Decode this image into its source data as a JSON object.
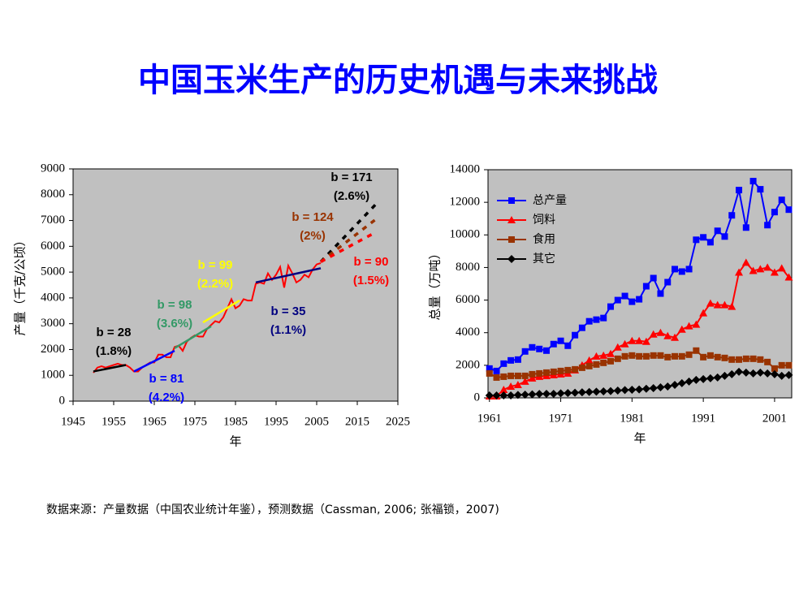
{
  "title": "中国玉米生产的历史机遇与未来挑战",
  "source": "数据来源：产量数据（中国农业统计年鉴），预测数据（Cassman, 2006; 张福锁，2007)",
  "chart_data": [
    {
      "type": "line",
      "x_label": "年",
      "y_label": "产量（千克/公顷）",
      "xlim": [
        1945,
        2025
      ],
      "xticks": [
        1945,
        1955,
        1965,
        1975,
        1985,
        1995,
        2005,
        2015,
        2025
      ],
      "ylim": [
        0,
        9000
      ],
      "yticks": [
        0,
        1000,
        2000,
        3000,
        4000,
        5000,
        6000,
        7000,
        8000,
        9000
      ],
      "series": [
        {
          "color": "#ff0000",
          "x": [
            1950,
            1951,
            1952,
            1953,
            1954,
            1955,
            1956,
            1957,
            1958,
            1959,
            1960,
            1961,
            1962,
            1963,
            1964,
            1965,
            1966,
            1967,
            1968,
            1969,
            1970,
            1971,
            1972,
            1973,
            1974,
            1975,
            1976,
            1977,
            1978,
            1979,
            1980,
            1981,
            1982,
            1983,
            1984,
            1985,
            1986,
            1987,
            1988,
            1989,
            1990,
            1991,
            1992,
            1993,
            1994,
            1995,
            1996,
            1997,
            1998,
            1999,
            2000,
            2001,
            2002,
            2003,
            2004,
            2005,
            2006
          ],
          "values": [
            1100,
            1300,
            1350,
            1300,
            1350,
            1400,
            1450,
            1400,
            1400,
            1300,
            1150,
            1150,
            1300,
            1400,
            1500,
            1500,
            1800,
            1800,
            1700,
            1700,
            2100,
            2150,
            1950,
            2300,
            2450,
            2550,
            2500,
            2500,
            2800,
            2950,
            3100,
            3050,
            3250,
            3600,
            3950,
            3600,
            3700,
            3950,
            3900,
            3900,
            4550,
            4600,
            4550,
            4950,
            4700,
            4900,
            5200,
            4400,
            5250,
            4950,
            4600,
            4700,
            4900,
            4800,
            5100,
            5300,
            5350
          ]
        }
      ],
      "trends": [
        {
          "label": "b = 28",
          "rate": "(1.8%)",
          "color": "#000000",
          "x": [
            1950,
            1958
          ],
          "values": [
            1150,
            1400
          ]
        },
        {
          "label": "b = 81",
          "rate": "(4.2%)",
          "color": "#0000ff",
          "x": [
            1960,
            1970
          ],
          "values": [
            1150,
            1950
          ]
        },
        {
          "label": "b = 98",
          "rate": "(3.6%)",
          "color": "#339966",
          "x": [
            1970,
            1979
          ],
          "values": [
            2050,
            2900
          ]
        },
        {
          "label": "b = 99",
          "rate": "(2.2%)",
          "color": "#ffff00",
          "x": [
            1977,
            1986
          ],
          "values": [
            3050,
            3900
          ]
        },
        {
          "label": "b = 35",
          "rate": "(1.1%)",
          "color": "#000080",
          "x": [
            1990,
            2006
          ],
          "values": [
            4600,
            5150
          ]
        },
        {
          "label": "b = 171",
          "rate": "(2.6%)",
          "color": "#000000",
          "x": [
            2006,
            2020
          ],
          "values": [
            5400,
            7700
          ],
          "dashed": true
        },
        {
          "label": "b = 124",
          "rate": "(2%)",
          "color": "#993300",
          "x": [
            2006,
            2020
          ],
          "values": [
            5400,
            7100
          ],
          "dashed": true
        },
        {
          "label": "b = 90",
          "rate": "(1.5%)",
          "color": "#ff0000",
          "x": [
            2006,
            2019
          ],
          "values": [
            5400,
            6500
          ],
          "dashed": true
        }
      ]
    },
    {
      "type": "line",
      "x_label": "年",
      "y_label": "总量（万吨）",
      "xlim": [
        1960.8,
        2003.4
      ],
      "xticks": [
        1961,
        1971,
        1981,
        1991,
        2001
      ],
      "ylim": [
        0,
        14000
      ],
      "yticks": [
        0,
        2000,
        4000,
        6000,
        8000,
        10000,
        12000,
        14000
      ],
      "legend": "upper left",
      "x": [
        1961,
        1962,
        1963,
        1964,
        1965,
        1966,
        1967,
        1968,
        1969,
        1970,
        1971,
        1972,
        1973,
        1974,
        1975,
        1976,
        1977,
        1978,
        1979,
        1980,
        1981,
        1982,
        1983,
        1984,
        1985,
        1986,
        1987,
        1988,
        1989,
        1990,
        1991,
        1992,
        1993,
        1994,
        1995,
        1996,
        1997,
        1998,
        1999,
        2000,
        2001,
        2002,
        2003
      ],
      "series": [
        {
          "name": "总产量",
          "color": "#0000ff",
          "marker": "square",
          "values": [
            1800,
            1650,
            2100,
            2300,
            2350,
            2850,
            3100,
            3000,
            2900,
            3300,
            3500,
            3200,
            3850,
            4300,
            4700,
            4800,
            4900,
            5600,
            6000,
            6250,
            5900,
            6050,
            6850,
            7350,
            6400,
            7100,
            7900,
            7750,
            7900,
            9700,
            9850,
            9550,
            10250,
            9900,
            11200,
            12750,
            10450,
            13300,
            12800,
            10600,
            11400,
            12150,
            11550
          ]
        },
        {
          "name": "饲料",
          "color": "#ff0000",
          "marker": "triangle",
          "values": [
            100,
            100,
            500,
            700,
            800,
            1000,
            1200,
            1300,
            1350,
            1400,
            1450,
            1500,
            1700,
            2000,
            2300,
            2550,
            2600,
            2700,
            3100,
            3300,
            3500,
            3500,
            3450,
            3900,
            4000,
            3800,
            3700,
            4200,
            4400,
            4500,
            5200,
            5800,
            5700,
            5700,
            5600,
            7700,
            8300,
            7800,
            7900,
            8000,
            7700,
            7950,
            7400
          ]
        },
        {
          "name": "食用",
          "color": "#993300",
          "marker": "square",
          "values": [
            1500,
            1250,
            1300,
            1350,
            1350,
            1350,
            1450,
            1500,
            1550,
            1600,
            1650,
            1700,
            1750,
            1850,
            1950,
            2050,
            2150,
            2250,
            2400,
            2550,
            2600,
            2550,
            2550,
            2600,
            2600,
            2500,
            2550,
            2550,
            2650,
            2900,
            2500,
            2600,
            2500,
            2450,
            2350,
            2350,
            2400,
            2400,
            2350,
            2200,
            1800,
            2000,
            2000
          ]
        },
        {
          "name": "其它",
          "color": "#000000",
          "marker": "diamond",
          "values": [
            150,
            150,
            150,
            150,
            180,
            200,
            220,
            240,
            250,
            250,
            280,
            300,
            320,
            340,
            360,
            380,
            400,
            420,
            450,
            480,
            500,
            520,
            560,
            600,
            650,
            700,
            800,
            900,
            1000,
            1100,
            1150,
            1200,
            1250,
            1350,
            1450,
            1600,
            1550,
            1500,
            1550,
            1500,
            1450,
            1350,
            1400
          ]
        }
      ]
    }
  ]
}
